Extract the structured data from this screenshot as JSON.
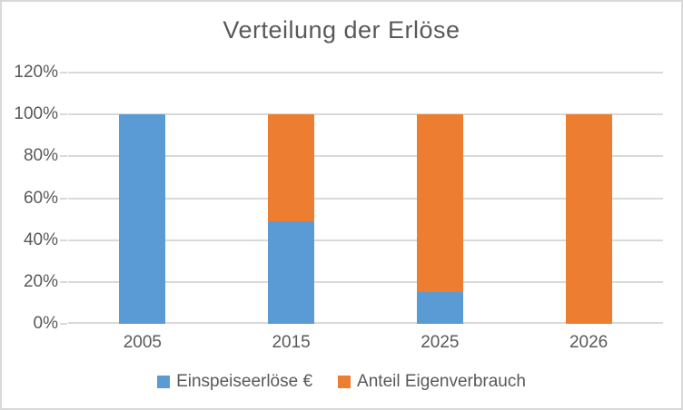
{
  "chart_data": {
    "type": "bar",
    "stacked": true,
    "title": "Verteilung der Erlöse",
    "categories": [
      "2005",
      "2015",
      "2025",
      "2026"
    ],
    "series": [
      {
        "name": "Einspeiseerlöse €",
        "color": "#5B9BD5",
        "values": [
          100,
          49,
          15,
          0
        ]
      },
      {
        "name": "Anteil Eigenverbrauch",
        "color": "#ED7D31",
        "values": [
          0,
          51,
          85,
          100
        ]
      }
    ],
    "y_ticks": [
      "0%",
      "20%",
      "40%",
      "60%",
      "80%",
      "100%",
      "120%"
    ],
    "ylim": [
      0,
      120
    ],
    "xlabel": "",
    "ylabel": "",
    "grid": true,
    "legend_position": "bottom",
    "colors": {
      "title_text": "#595959",
      "axis_text": "#595959",
      "gridline": "#D9D9D9",
      "frame_border": "#D9D9D9",
      "background": "#FFFFFF"
    }
  }
}
